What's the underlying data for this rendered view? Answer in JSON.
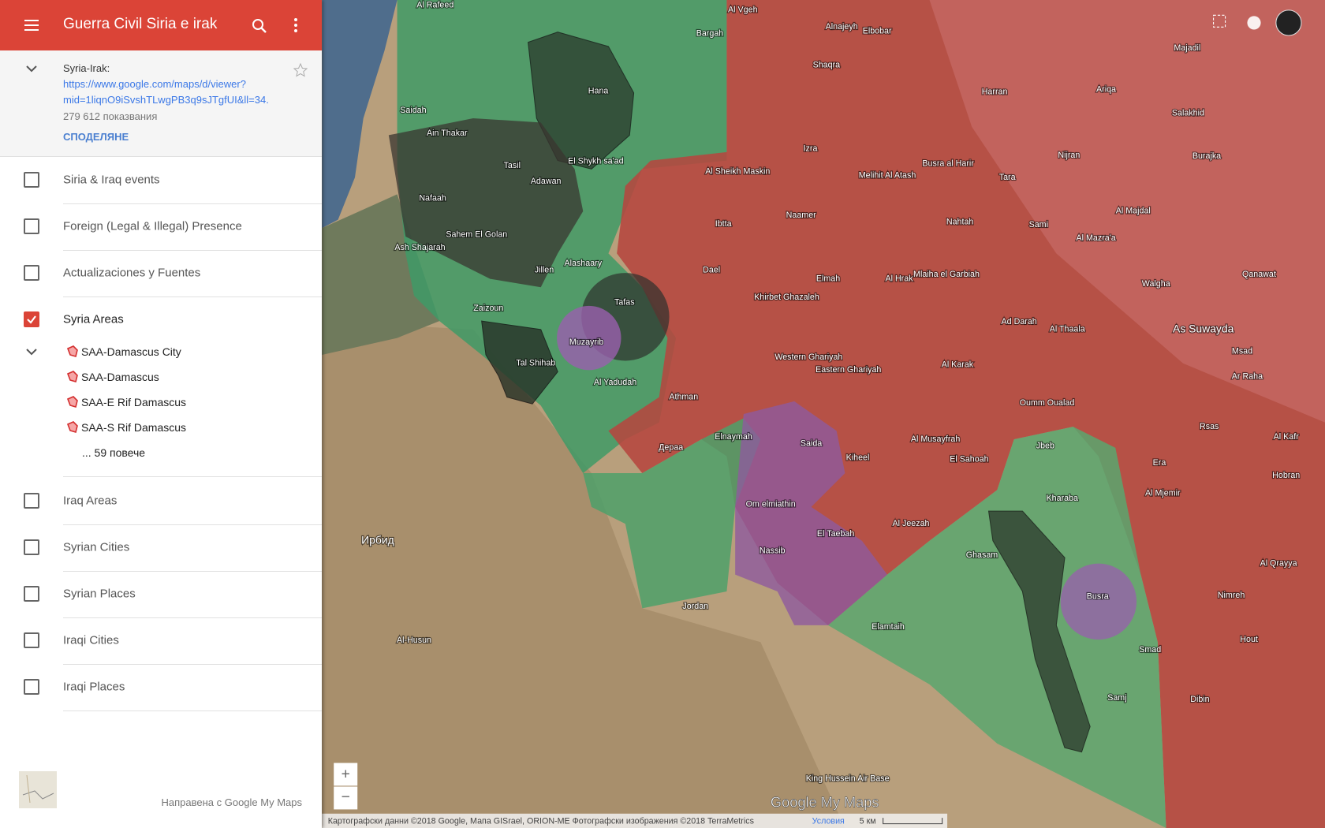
{
  "header": {
    "title": "Guerra Civil Siria e irak"
  },
  "map_info": {
    "name": "Syria-Irak:",
    "link_line1": "https://www.google.com/maps/d/viewer?",
    "link_line2": "mid=1liqnO9iSvshTLwgPB3q9sJTgfUI&ll=34.",
    "views": "279 612 показвания",
    "share": "СПОДЕЛЯНЕ"
  },
  "layers": [
    {
      "name": "Siria & Iraq events",
      "checked": false
    },
    {
      "name": "Foreign (Legal & Illegal) Presence",
      "checked": false
    },
    {
      "name": "Actualizaciones y Fuentes",
      "checked": false
    },
    {
      "name": "Syria Areas",
      "checked": true,
      "items": [
        "SAA-Damascus City",
        "SAA-Damascus",
        "SAA-E Rif Damascus",
        "SAA-S Rif Damascus"
      ],
      "more": "... 59 повече"
    },
    {
      "name": "Iraq Areas",
      "checked": false
    },
    {
      "name": "Syrian Cities",
      "checked": false
    },
    {
      "name": "Syrian Places",
      "checked": false
    },
    {
      "name": "Iraqi Cities",
      "checked": false
    },
    {
      "name": "Iraqi Places",
      "checked": false
    }
  ],
  "footer": "Направена с Google My Maps",
  "map": {
    "labels": [
      "Al Rafeed",
      "Hana",
      "Saidah",
      "Ain Thakar",
      "Tasil",
      "Adawan",
      "El Shykh sa'ad",
      "Nafaah",
      "Sahem El Golan",
      "Ash Shajarah",
      "Jillen",
      "Alashaary",
      "Zaizoun",
      "Tafas",
      "Muzayrib",
      "Tal Shihab",
      "Al Yadudah",
      "Athman",
      "Дераа",
      "Elnaymah",
      "Saida",
      "Om elmiathin",
      "Nassib",
      "El Taebah",
      "Kiheel",
      "Eastern Ghariyah",
      "Western Ghariyah",
      "Khirbet Ghazaleh",
      "Dael",
      "Elmah",
      "Ibtta",
      "Naamer",
      "Al Sheikh Maskin",
      "Izra",
      "Shaqra",
      "Al Hrak",
      "Mlaiha el Garbiah",
      "Nahtah",
      "Busra al Harir",
      "Melihit Al Atash",
      "Al Karak",
      "Al Musayfrah",
      "El Sahoah",
      "Al Jeezah",
      "Oumm Oualad",
      "Jbeb",
      "Kharaba",
      "Ghasam",
      "Busra",
      "Smad",
      "Samj",
      "Elamtaih",
      "As Suwayda",
      "Ad Darah",
      "Al Thaala",
      "Ирбид",
      "Al-Husun",
      "King Hussein Air Base",
      "Bargah",
      "Al Vgeh",
      "Alnajeyh",
      "Elbobar",
      "Harran",
      "Ariqa",
      "Salakhid",
      "Tara",
      "Nijran",
      "Sami",
      "Al Mazra'a",
      "Al Majdal",
      "Walgha",
      "Msad",
      "Ar Raha",
      "Rsas",
      "Era",
      "Al Mjemir",
      "Nimreh",
      "Hout",
      "Dibin",
      "Majadil",
      "Burajka",
      "Qanawat",
      "Hobran",
      "Al Kafr",
      "Al Qrayya",
      "Jordan"
    ],
    "zoom_in": "+",
    "zoom_out": "−",
    "attribution": "Картографски данни ©2018 Google, Мапа GISrael, ORION-ME Фотографски изображения ©2018 TerraMetrics",
    "terms": "Условия",
    "scale": "5 км",
    "watermark": "Google My Maps"
  }
}
